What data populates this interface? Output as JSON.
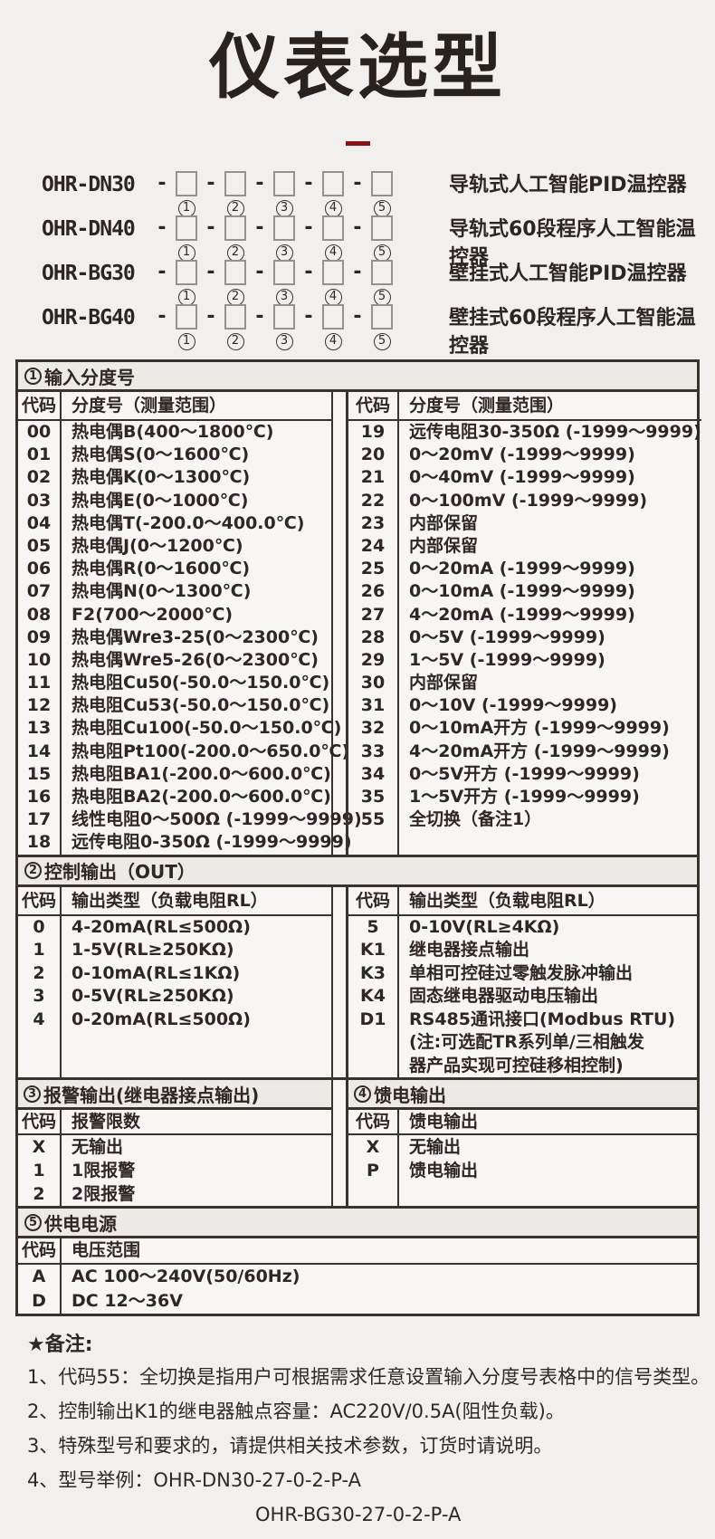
{
  "page": {
    "title": "仪表选型"
  },
  "models_sep": "-",
  "position_labels": [
    "1",
    "2",
    "3",
    "4",
    "5"
  ],
  "models": [
    {
      "code": "OHR-DN30",
      "desc": "导轨式人工智能PID温控器"
    },
    {
      "code": "OHR-DN40",
      "desc": "导轨式60段程序人工智能温控器"
    },
    {
      "code": "OHR-BG30",
      "desc": "壁挂式人工智能PID温控器"
    },
    {
      "code": "OHR-BG40",
      "desc": "壁挂式60段程序人工智能温控器"
    }
  ],
  "sections": {
    "input": {
      "num": "1",
      "title": "输入分度号",
      "col_code": "代码",
      "col_desc": "分度号（测量范围）",
      "left": [
        [
          "00",
          "热电偶B(400～1800℃)"
        ],
        [
          "01",
          "热电偶S(0～1600℃)"
        ],
        [
          "02",
          "热电偶K(0～1300℃)"
        ],
        [
          "03",
          "热电偶E(0～1000℃)"
        ],
        [
          "04",
          "热电偶T(-200.0～400.0℃)"
        ],
        [
          "05",
          "热电偶J(0～1200℃)"
        ],
        [
          "06",
          "热电偶R(0～1600℃)"
        ],
        [
          "07",
          "热电偶N(0～1300℃)"
        ],
        [
          "08",
          "F2(700～2000℃)"
        ],
        [
          "09",
          "热电偶Wre3-25(0～2300℃)"
        ],
        [
          "10",
          "热电偶Wre5-26(0～2300℃)"
        ],
        [
          "11",
          "热电阻Cu50(-50.0～150.0℃)"
        ],
        [
          "12",
          "热电阻Cu53(-50.0～150.0℃)"
        ],
        [
          "13",
          "热电阻Cu100(-50.0～150.0℃)"
        ],
        [
          "14",
          "热电阻Pt100(-200.0～650.0℃)"
        ],
        [
          "15",
          "热电阻BA1(-200.0～600.0℃)"
        ],
        [
          "16",
          "热电阻BA2(-200.0～600.0℃)"
        ],
        [
          "17",
          "线性电阻0～500Ω (-1999～9999)"
        ],
        [
          "18",
          "远传电阻0-350Ω (-1999～9999)"
        ]
      ],
      "right": [
        [
          "19",
          "远传电阻30-350Ω (-1999～9999)"
        ],
        [
          "20",
          "0～20mV (-1999～9999)"
        ],
        [
          "21",
          "0～40mV (-1999～9999)"
        ],
        [
          "22",
          "0～100mV (-1999～9999)"
        ],
        [
          "23",
          "内部保留"
        ],
        [
          "24",
          "内部保留"
        ],
        [
          "25",
          "0～20mA (-1999～9999)"
        ],
        [
          "26",
          "0～10mA (-1999～9999)"
        ],
        [
          "27",
          "4～20mA (-1999～9999)"
        ],
        [
          "28",
          "0～5V (-1999～9999)"
        ],
        [
          "29",
          "1～5V (-1999～9999)"
        ],
        [
          "30",
          "内部保留"
        ],
        [
          "31",
          "0～10V (-1999～9999)"
        ],
        [
          "32",
          "0～10mA开方 (-1999～9999)"
        ],
        [
          "33",
          "4～20mA开方 (-1999～9999)"
        ],
        [
          "34",
          "0～5V开方 (-1999～9999)"
        ],
        [
          "35",
          "1～5V开方 (-1999～9999)"
        ],
        [
          "55",
          "全切换（备注1）"
        ]
      ]
    },
    "output": {
      "num": "2",
      "title": "控制输出（OUT）",
      "col_code": "代码",
      "col_desc": "输出类型（负载电阻RL）",
      "left": [
        [
          "0",
          "4-20mA(RL≤500Ω)"
        ],
        [
          "1",
          "1-5V(RL≥250KΩ)"
        ],
        [
          "2",
          "0-10mA(RL≤1KΩ)"
        ],
        [
          "3",
          "0-5V(RL≥250KΩ)"
        ],
        [
          "4",
          "0-20mA(RL≤500Ω)"
        ]
      ],
      "right": [
        [
          "5",
          "0-10V(RL≥4KΩ)"
        ],
        [
          "K1",
          "继电器接点输出"
        ],
        [
          "K3",
          "单相可控硅过零触发脉冲输出"
        ],
        [
          "K4",
          "固态继电器驱动电压输出"
        ],
        [
          "D1",
          "RS485通讯接口(Modbus RTU)"
        ],
        [
          "",
          "(注:可选配TR系列单/三相触发"
        ],
        [
          "",
          "器产品实现可控硅移相控制)"
        ]
      ]
    },
    "alarm": {
      "num": "3",
      "title": "报警输出(继电器接点输出)",
      "col_code": "代码",
      "col_desc": "报警限数",
      "rows": [
        [
          "X",
          "无输出"
        ],
        [
          "1",
          "1限报警"
        ],
        [
          "2",
          "2限报警"
        ]
      ]
    },
    "feed": {
      "num": "4",
      "title": "馈电输出",
      "col_code": "代码",
      "col_desc": "馈电输出",
      "rows": [
        [
          "X",
          "无输出"
        ],
        [
          "P",
          "馈电输出"
        ]
      ]
    },
    "power": {
      "num": "5",
      "title": "供电电源",
      "col_code": "代码",
      "col_desc": "电压范围",
      "rows": [
        [
          "A",
          "AC 100～240V(50/60Hz)"
        ],
        [
          "D",
          "DC 12～36V"
        ]
      ]
    }
  },
  "notes": {
    "title": "★备注:",
    "items": [
      "1、代码55：全切换是指用户可根据需求任意设置输入分度号表格中的信号类型。",
      "2、控制输出K1的继电器触点容量：AC220V/0.5A(阻性负载)。",
      "3、特殊型号和要求的，请提供相关技术参数，订货时请说明。",
      "4、型号举例：OHR-DN30-27-0-2-P-A"
    ],
    "example2": "OHR-BG30-27-0-2-P-A"
  },
  "colors": {
    "accent_red": "#8c1313",
    "border": "#3a322d",
    "page_bg": "#f2f0ef",
    "cell_bg": "#f8f6f4",
    "section_header_bg": "#eceae7"
  }
}
